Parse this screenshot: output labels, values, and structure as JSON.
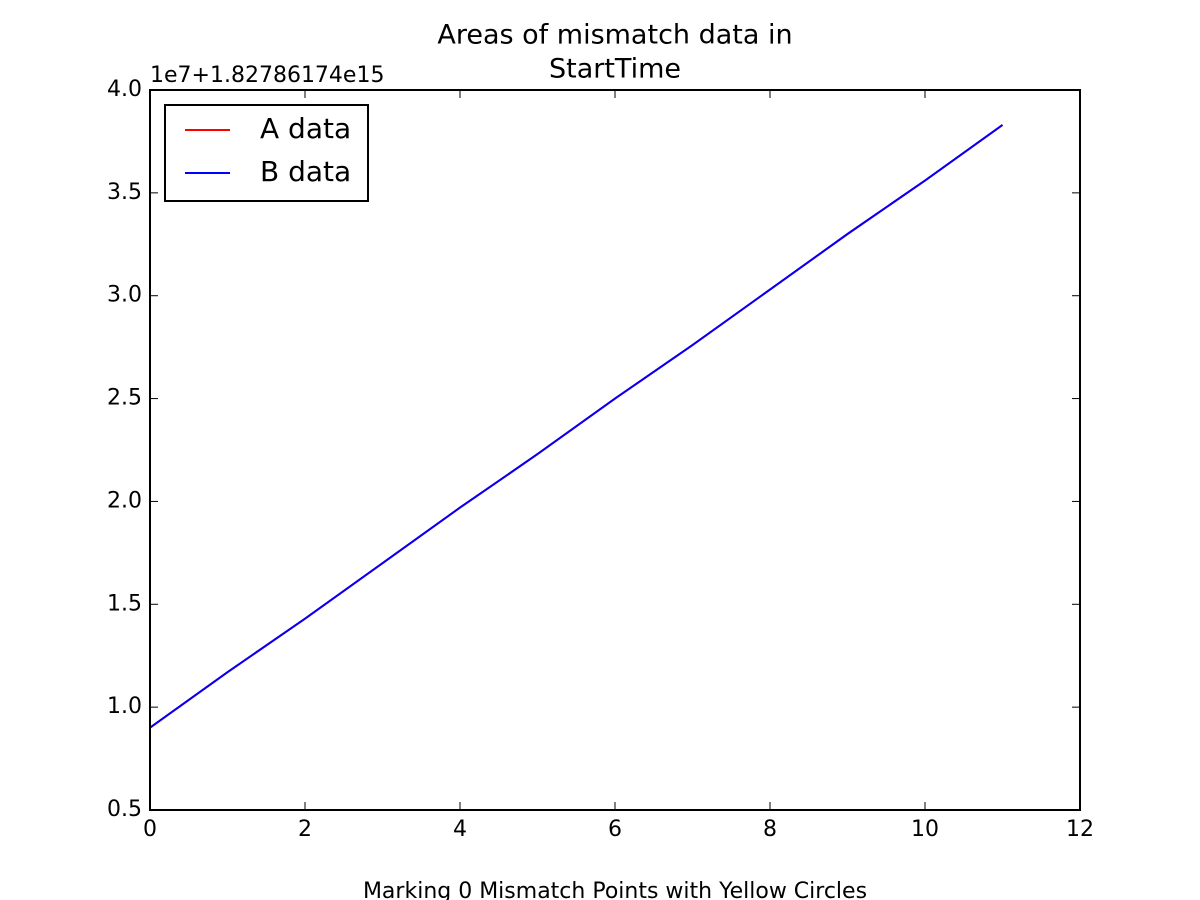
{
  "chart_data": {
    "type": "line",
    "title": [
      "Areas of mismatch data in",
      "StartTime"
    ],
    "y_offset_label": "1e7+1.82786174e15",
    "xlabel": "Marking 0 Mismatch Points with Yellow Circles",
    "x": [
      0,
      1,
      2,
      3,
      4,
      5,
      6,
      7,
      8,
      9,
      10,
      11
    ],
    "series": [
      {
        "name": "A data",
        "color": "#ff0000",
        "values": [
          0.9,
          1.17,
          1.43,
          1.7,
          1.97,
          2.23,
          2.5,
          2.76,
          3.03,
          3.3,
          3.56,
          3.83
        ]
      },
      {
        "name": "B data",
        "color": "#0000ff",
        "values": [
          0.9,
          1.17,
          1.43,
          1.7,
          1.97,
          2.23,
          2.5,
          2.76,
          3.03,
          3.3,
          3.56,
          3.83
        ]
      }
    ],
    "xlim": [
      0,
      12
    ],
    "xticks": [
      0,
      2,
      4,
      6,
      8,
      10,
      12
    ],
    "ylim": [
      0.5,
      4
    ],
    "yticks": [
      0.5,
      {
        "value": 1,
        "label": "1.0"
      },
      1.5,
      {
        "value": 2,
        "label": "2.0"
      },
      2.5,
      {
        "value": 3,
        "label": "3.0"
      },
      3.5,
      {
        "value": 4,
        "label": "4.0"
      }
    ],
    "legend": "upper left"
  }
}
